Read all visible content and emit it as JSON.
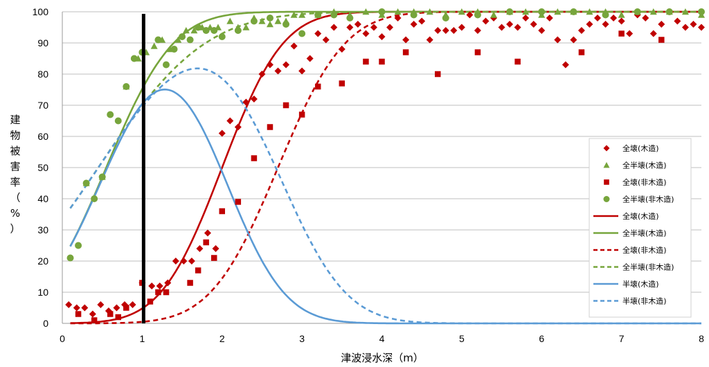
{
  "chart_data": {
    "type": "scatter",
    "xlabel": "津波浸水深（m）",
    "ylabel_chars": [
      "建",
      "物",
      "被",
      "害",
      "率",
      "（",
      "%",
      "）"
    ],
    "xlim": [
      0,
      8
    ],
    "ylim": [
      0,
      100
    ],
    "x_ticks": [
      "0",
      "1",
      "2",
      "3",
      "4",
      "5",
      "6",
      "7",
      "8"
    ],
    "y_ticks": [
      "0",
      "10",
      "20",
      "30",
      "40",
      "50",
      "60",
      "70",
      "80",
      "90",
      "100"
    ],
    "grid": "horizontal",
    "legend_position": "right",
    "reference_line_x": 1,
    "colors": {
      "red": "#c00000",
      "green": "#77a53c",
      "blue": "#5b9bd5"
    },
    "scatter_series": [
      {
        "name": "全壊(木造)",
        "marker": "diamond",
        "color": "#c00000",
        "points": [
          [
            0.08,
            6
          ],
          [
            0.18,
            5
          ],
          [
            0.28,
            5
          ],
          [
            0.38,
            3
          ],
          [
            0.48,
            6
          ],
          [
            0.58,
            4
          ],
          [
            0.68,
            5
          ],
          [
            0.78,
            6
          ],
          [
            0.88,
            6
          ],
          [
            1.0,
            13
          ],
          [
            1.12,
            12
          ],
          [
            1.22,
            12
          ],
          [
            1.32,
            13
          ],
          [
            1.42,
            20
          ],
          [
            1.52,
            20
          ],
          [
            1.62,
            20
          ],
          [
            1.72,
            24
          ],
          [
            1.82,
            29
          ],
          [
            1.92,
            24
          ],
          [
            2.0,
            61
          ],
          [
            2.1,
            65
          ],
          [
            2.2,
            63
          ],
          [
            2.3,
            71
          ],
          [
            2.4,
            72
          ],
          [
            2.5,
            80
          ],
          [
            2.6,
            83
          ],
          [
            2.7,
            81
          ],
          [
            2.8,
            83
          ],
          [
            2.9,
            89
          ],
          [
            3.0,
            81
          ],
          [
            3.1,
            85
          ],
          [
            3.2,
            93
          ],
          [
            3.3,
            91
          ],
          [
            3.4,
            95
          ],
          [
            3.5,
            88
          ],
          [
            3.6,
            95
          ],
          [
            3.7,
            96
          ],
          [
            3.8,
            93
          ],
          [
            3.9,
            95
          ],
          [
            4.0,
            92
          ],
          [
            4.1,
            95
          ],
          [
            4.2,
            98
          ],
          [
            4.3,
            91
          ],
          [
            4.4,
            96
          ],
          [
            4.5,
            97
          ],
          [
            4.6,
            91
          ],
          [
            4.7,
            94
          ],
          [
            4.8,
            94
          ],
          [
            4.9,
            94
          ],
          [
            5.0,
            95
          ],
          [
            5.1,
            99
          ],
          [
            5.2,
            94
          ],
          [
            5.3,
            97
          ],
          [
            5.4,
            98
          ],
          [
            5.5,
            95
          ],
          [
            5.6,
            96
          ],
          [
            5.7,
            95
          ],
          [
            5.8,
            98
          ],
          [
            5.9,
            96
          ],
          [
            6.0,
            94
          ],
          [
            6.1,
            98
          ],
          [
            6.2,
            91
          ],
          [
            6.3,
            83
          ],
          [
            6.4,
            91
          ],
          [
            6.5,
            94
          ],
          [
            6.6,
            96
          ],
          [
            6.7,
            98
          ],
          [
            6.8,
            96
          ],
          [
            6.9,
            98
          ],
          [
            7.0,
            97
          ],
          [
            7.1,
            93
          ],
          [
            7.2,
            99
          ],
          [
            7.3,
            98
          ],
          [
            7.4,
            93
          ],
          [
            7.5,
            96
          ],
          [
            7.6,
            100
          ],
          [
            7.7,
            97
          ],
          [
            7.8,
            95
          ],
          [
            7.9,
            96
          ],
          [
            8.0,
            95
          ]
        ]
      },
      {
        "name": "全半壊(木造)",
        "marker": "triangle",
        "color": "#77a53c",
        "points": [
          [
            0.3,
            45
          ],
          [
            0.5,
            47
          ],
          [
            0.8,
            76
          ],
          [
            0.95,
            85
          ],
          [
            1.05,
            87
          ],
          [
            1.15,
            89
          ],
          [
            1.25,
            91
          ],
          [
            1.35,
            88
          ],
          [
            1.45,
            91
          ],
          [
            1.55,
            94
          ],
          [
            1.65,
            94
          ],
          [
            1.75,
            95
          ],
          [
            1.85,
            95
          ],
          [
            1.95,
            95
          ],
          [
            2.1,
            97
          ],
          [
            2.2,
            95
          ],
          [
            2.3,
            95
          ],
          [
            2.4,
            98
          ],
          [
            2.5,
            97
          ],
          [
            2.6,
            96
          ],
          [
            2.7,
            97
          ],
          [
            2.8,
            97
          ],
          [
            2.9,
            99
          ],
          [
            3.0,
            99
          ],
          [
            3.2,
            99
          ],
          [
            3.4,
            100
          ],
          [
            3.6,
            99
          ],
          [
            3.8,
            100
          ],
          [
            4.0,
            99
          ],
          [
            4.2,
            100
          ],
          [
            4.4,
            100
          ],
          [
            4.6,
            100
          ],
          [
            4.8,
            99
          ],
          [
            5.0,
            100
          ],
          [
            5.2,
            100
          ],
          [
            5.4,
            99
          ],
          [
            5.6,
            100
          ],
          [
            5.8,
            100
          ],
          [
            6.0,
            99
          ],
          [
            6.2,
            100
          ],
          [
            6.4,
            100
          ],
          [
            6.6,
            100
          ],
          [
            6.8,
            100
          ],
          [
            7.0,
            99
          ],
          [
            7.2,
            100
          ],
          [
            7.4,
            100
          ],
          [
            7.6,
            100
          ],
          [
            7.8,
            100
          ],
          [
            8.0,
            99
          ]
        ]
      },
      {
        "name": "全壊(非木造)",
        "marker": "square",
        "color": "#c00000",
        "points": [
          [
            0.2,
            3
          ],
          [
            0.4,
            1
          ],
          [
            0.6,
            3
          ],
          [
            0.7,
            2
          ],
          [
            0.8,
            5
          ],
          [
            1.0,
            13
          ],
          [
            1.1,
            7
          ],
          [
            1.2,
            10
          ],
          [
            1.3,
            10
          ],
          [
            1.6,
            13
          ],
          [
            1.7,
            17
          ],
          [
            1.8,
            26
          ],
          [
            1.9,
            21
          ],
          [
            2.0,
            36
          ],
          [
            2.2,
            39
          ],
          [
            2.4,
            53
          ],
          [
            2.6,
            63
          ],
          [
            2.8,
            70
          ],
          [
            3.0,
            67
          ],
          [
            3.2,
            76
          ],
          [
            3.5,
            77
          ],
          [
            3.8,
            84
          ],
          [
            4.0,
            84
          ],
          [
            4.3,
            87
          ],
          [
            4.7,
            80
          ],
          [
            5.2,
            87
          ],
          [
            5.7,
            84
          ],
          [
            6.5,
            87
          ],
          [
            7.0,
            93
          ],
          [
            7.5,
            91
          ]
        ]
      },
      {
        "name": "全半壊(非木造)",
        "marker": "circle",
        "color": "#77a53c",
        "points": [
          [
            0.1,
            21
          ],
          [
            0.2,
            25
          ],
          [
            0.3,
            45
          ],
          [
            0.4,
            40
          ],
          [
            0.5,
            47
          ],
          [
            0.6,
            67
          ],
          [
            0.7,
            65
          ],
          [
            0.8,
            76
          ],
          [
            0.9,
            85
          ],
          [
            1.0,
            87
          ],
          [
            1.2,
            91
          ],
          [
            1.3,
            83
          ],
          [
            1.4,
            88
          ],
          [
            1.5,
            92
          ],
          [
            1.6,
            91
          ],
          [
            1.7,
            95
          ],
          [
            1.8,
            94
          ],
          [
            1.9,
            94
          ],
          [
            2.0,
            92
          ],
          [
            2.2,
            94
          ],
          [
            2.4,
            97
          ],
          [
            2.6,
            98
          ],
          [
            2.8,
            96
          ],
          [
            3.0,
            93
          ],
          [
            3.2,
            99
          ],
          [
            3.4,
            99
          ],
          [
            3.6,
            98
          ],
          [
            4.0,
            100
          ],
          [
            4.4,
            99
          ],
          [
            4.8,
            98
          ],
          [
            5.2,
            99
          ],
          [
            5.6,
            100
          ],
          [
            6.0,
            100
          ],
          [
            6.4,
            100
          ],
          [
            6.8,
            99
          ],
          [
            7.2,
            100
          ],
          [
            7.6,
            100
          ],
          [
            8.0,
            100
          ]
        ]
      }
    ],
    "curve_series": [
      {
        "name": "全壊(木造)",
        "color": "#c00000",
        "dash": false,
        "kind": "normal_cdf",
        "mu": 2.0,
        "sigma": 0.6
      },
      {
        "name": "全半壊(木造)",
        "color": "#77a53c",
        "dash": false,
        "kind": "normal_cdf",
        "mu": 0.55,
        "sigma": 0.66
      },
      {
        "name": "全壊(非木造)",
        "color": "#c00000",
        "dash": true,
        "kind": "normal_cdf",
        "mu": 2.7,
        "sigma": 0.66
      },
      {
        "name": "全半壊(非木造)",
        "color": "#77a53c",
        "dash": true,
        "kind": "normal_cdf",
        "mu": 0.45,
        "sigma": 1.05
      },
      {
        "name": "半壊(木造)",
        "color": "#5b9bd5",
        "dash": false,
        "kind": "difference",
        "of": [
          1,
          0
        ]
      },
      {
        "name": "半壊(非木造)",
        "color": "#5b9bd5",
        "dash": true,
        "kind": "difference",
        "of": [
          3,
          2
        ]
      }
    ]
  }
}
